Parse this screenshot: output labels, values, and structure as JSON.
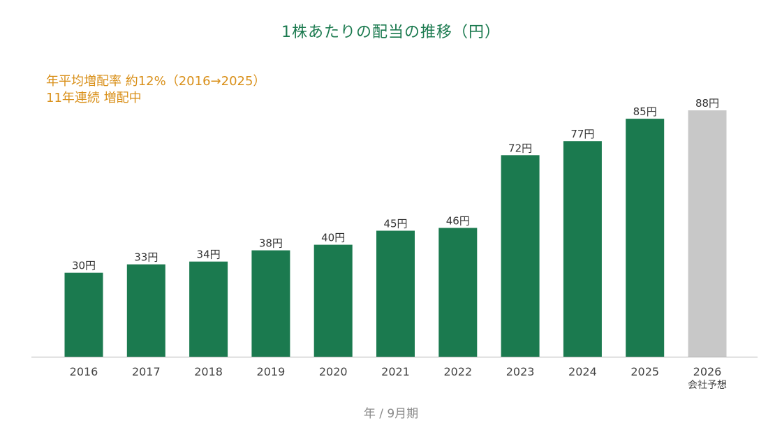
{
  "chart_data": {
    "type": "bar",
    "title": "1株あたりの配当の推移（円）",
    "notes": [
      "年平均増配率 約12%（2016→2025）",
      "11年連続 増配中"
    ],
    "xlabel": "年 / 9月期",
    "ylabel": "",
    "categories": [
      "2016",
      "2017",
      "2018",
      "2019",
      "2020",
      "2021",
      "2022",
      "2023",
      "2024",
      "2025",
      "2026"
    ],
    "category_sublabels": [
      "",
      "",
      "",
      "",
      "",
      "",
      "",
      "",
      "",
      "",
      "会社予想"
    ],
    "values": [
      30,
      33,
      34,
      38,
      40,
      45,
      46,
      72,
      77,
      85,
      88
    ],
    "data_labels": [
      "30円",
      "33円",
      "34円",
      "38円",
      "40円",
      "45円",
      "46円",
      "72円",
      "77円",
      "85円",
      "88円"
    ],
    "forecast_flags": [
      false,
      false,
      false,
      false,
      false,
      false,
      false,
      false,
      false,
      false,
      true
    ],
    "ylim": [
      0,
      90
    ],
    "grid": false,
    "colors": {
      "actual": "#1b7a4f",
      "forecast": "#c8c8c8",
      "axis": "#b0b0b0",
      "title": "#1b7a4f",
      "note": "#d9901a"
    }
  }
}
